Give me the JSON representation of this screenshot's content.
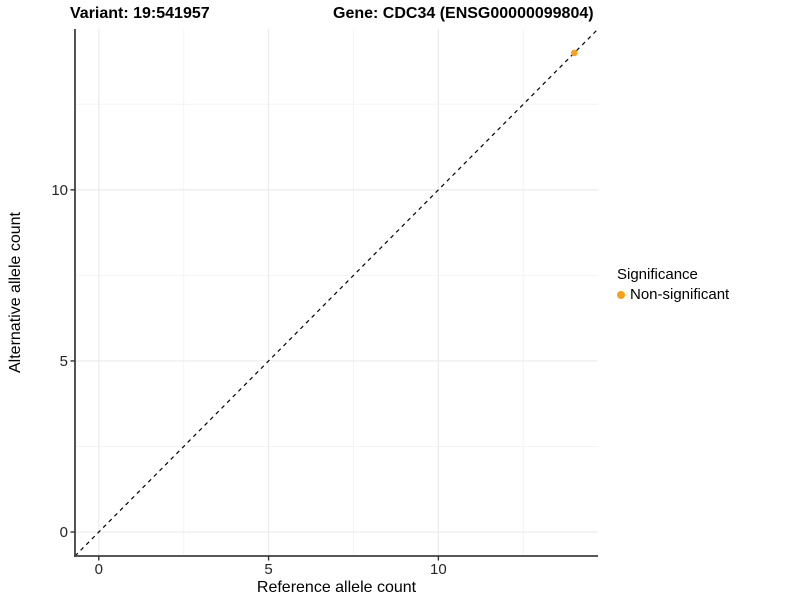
{
  "titles": {
    "variant": "Variant: 19:541957",
    "gene": "Gene: CDC34 (ENSG00000099804)"
  },
  "chart_data": {
    "type": "scatter",
    "title_left": "Variant: 19:541957",
    "title_right": "Gene: CDC34 (ENSG00000099804)",
    "xlabel": "Reference allele count",
    "ylabel": "Alternative allele count",
    "xlim": [
      -0.7,
      14.7
    ],
    "ylim": [
      -0.7,
      14.7
    ],
    "xticks": [
      0,
      5,
      10
    ],
    "yticks": [
      0,
      5,
      10
    ],
    "minor_xticks": [
      2.5,
      7.5,
      12.5
    ],
    "minor_yticks": [
      2.5,
      7.5,
      12.5
    ],
    "grid": true,
    "reference_line": {
      "type": "identity",
      "slope": 1,
      "intercept": 0,
      "style": "dashed",
      "color": "#000000"
    },
    "series": [
      {
        "name": "Non-significant",
        "color": "#F9A11C",
        "points": [
          {
            "x": 14,
            "y": 14
          }
        ]
      }
    ],
    "legend": {
      "title": "Significance",
      "position": "right",
      "items": [
        {
          "label": "Non-significant",
          "color": "#F9A11C"
        }
      ]
    },
    "colors": {
      "axis_line": "#404040",
      "grid_major": "#EBEBEB",
      "grid_minor": "#F4F4F4",
      "point": "#F9A11C"
    }
  }
}
